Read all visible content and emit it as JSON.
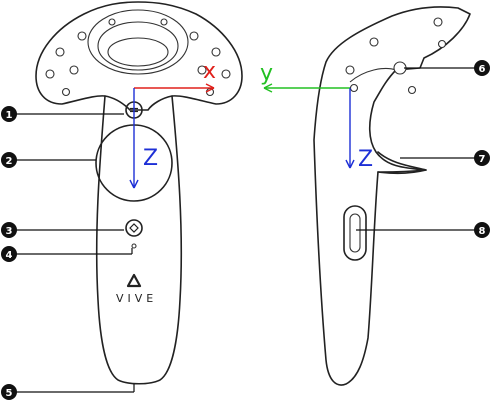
{
  "brand": {
    "text": "VIVE"
  },
  "axes": {
    "x": {
      "label": "x",
      "color": "#e0201b"
    },
    "y": {
      "label": "y",
      "color": "#22c022"
    },
    "z": {
      "label": "Z",
      "color": "#1d2fd6"
    }
  },
  "callouts": [
    "1",
    "2",
    "3",
    "4",
    "5",
    "6",
    "7",
    "8"
  ],
  "colors": {
    "outline": "#222222",
    "badge": "#111111"
  }
}
